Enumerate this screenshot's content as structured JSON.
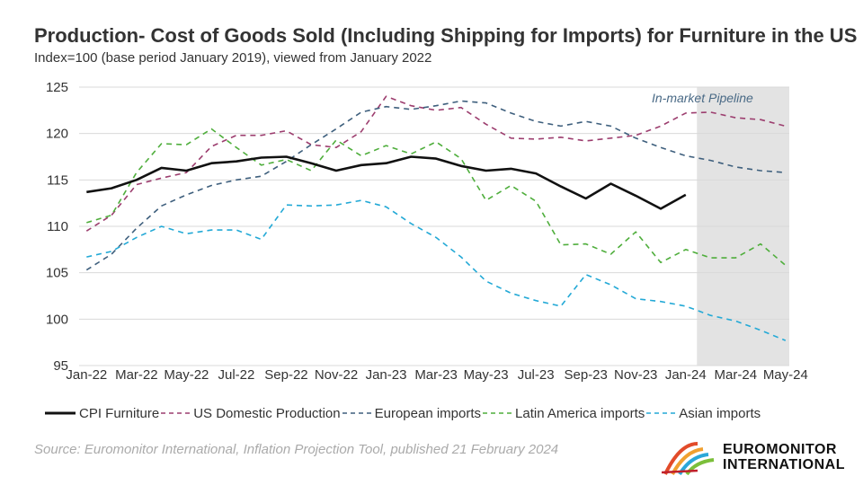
{
  "header": {
    "title": "Production- Cost of Goods Sold (Including Shipping for Imports) for Furniture in the US",
    "subtitle": "Index=100 (base period January 2019), viewed from January 2022"
  },
  "annotation": "In-market Pipeline",
  "source": "Source: Euromonitor International, Inflation Projection Tool, published 21 February 2024",
  "logo": {
    "line1": "EUROMONITOR",
    "line2": "INTERNATIONAL"
  },
  "colors": {
    "cpi": "#111111",
    "us_domestic": "#9c3d6e",
    "european": "#3e5f7d",
    "latam": "#4fae3c",
    "asian": "#23a9d6",
    "shade": "#e3e3e3"
  },
  "chart_data": {
    "type": "line",
    "title": "Production- Cost of Goods Sold (Including Shipping for Imports) for Furniture in the US",
    "subtitle": "Index=100 (base period January 2019), viewed from January 2022",
    "x": [
      "Jan-22",
      "Feb-22",
      "Mar-22",
      "Apr-22",
      "May-22",
      "Jun-22",
      "Jul-22",
      "Aug-22",
      "Sep-22",
      "Oct-22",
      "Nov-22",
      "Dec-22",
      "Jan-23",
      "Feb-23",
      "Mar-23",
      "Apr-23",
      "May-23",
      "Jun-23",
      "Jul-23",
      "Aug-23",
      "Sep-23",
      "Oct-23",
      "Nov-23",
      "Dec-23",
      "Jan-24",
      "Feb-24",
      "Mar-24",
      "Apr-24",
      "May-24"
    ],
    "x_tick_labels": [
      "Jan-22",
      "Mar-22",
      "May-22",
      "Jul-22",
      "Sep-22",
      "Nov-22",
      "Jan-23",
      "Mar-23",
      "May-23",
      "Jul-23",
      "Sep-23",
      "Nov-23",
      "Jan-24",
      "Mar-24",
      "May-24"
    ],
    "ylim": [
      95,
      125
    ],
    "y_ticks": [
      95,
      100,
      105,
      110,
      115,
      120,
      125
    ],
    "grid": true,
    "legend_position": "bottom",
    "shaded_region": {
      "x_start": "Feb-24",
      "x_end": "May-24",
      "label": "In-market Pipeline"
    },
    "series": [
      {
        "name": "CPI Furniture",
        "style": "solid",
        "values": [
          113.7,
          114.1,
          115.0,
          116.3,
          116.0,
          116.8,
          117.0,
          117.4,
          117.5,
          116.8,
          116.0,
          116.6,
          116.8,
          117.5,
          117.3,
          116.5,
          116.0,
          116.2,
          115.7,
          114.3,
          113.0,
          114.6,
          113.3,
          111.9,
          113.4,
          null,
          null,
          null,
          null
        ]
      },
      {
        "name": "US Domestic Production",
        "style": "dashed",
        "values": [
          109.5,
          111.2,
          114.5,
          115.2,
          115.8,
          118.6,
          119.8,
          119.8,
          120.3,
          118.8,
          118.5,
          120.2,
          124.0,
          123.0,
          122.5,
          122.8,
          121.0,
          119.5,
          119.4,
          119.6,
          119.2,
          119.5,
          119.8,
          120.8,
          122.2,
          122.3,
          121.7,
          121.5,
          120.8
        ]
      },
      {
        "name": "European imports",
        "style": "dashed",
        "values": [
          105.3,
          107.0,
          109.8,
          112.2,
          113.4,
          114.4,
          115.0,
          115.4,
          117.0,
          118.8,
          120.5,
          122.3,
          122.9,
          122.6,
          123.0,
          123.5,
          123.3,
          122.2,
          121.3,
          120.8,
          121.3,
          120.8,
          119.5,
          118.5,
          117.6,
          117.1,
          116.4,
          116.0,
          115.8
        ]
      },
      {
        "name": "Latin America imports",
        "style": "dashed",
        "values": [
          110.4,
          111.2,
          115.8,
          118.9,
          118.8,
          120.5,
          118.5,
          116.6,
          117.2,
          116.0,
          119.3,
          117.6,
          118.7,
          117.8,
          119.1,
          117.3,
          112.8,
          114.4,
          112.7,
          108.0,
          108.1,
          107.0,
          109.4,
          106.1,
          107.5,
          106.6,
          106.6,
          108.1,
          105.8
        ]
      },
      {
        "name": "Asian imports",
        "style": "dashed",
        "values": [
          106.7,
          107.3,
          108.8,
          110.0,
          109.2,
          109.6,
          109.6,
          108.6,
          112.3,
          112.2,
          112.3,
          112.8,
          112.1,
          110.3,
          108.8,
          106.7,
          104.1,
          102.8,
          102.0,
          101.4,
          104.8,
          103.7,
          102.2,
          101.9,
          101.4,
          100.4,
          99.8,
          98.8,
          97.7
        ]
      }
    ]
  }
}
